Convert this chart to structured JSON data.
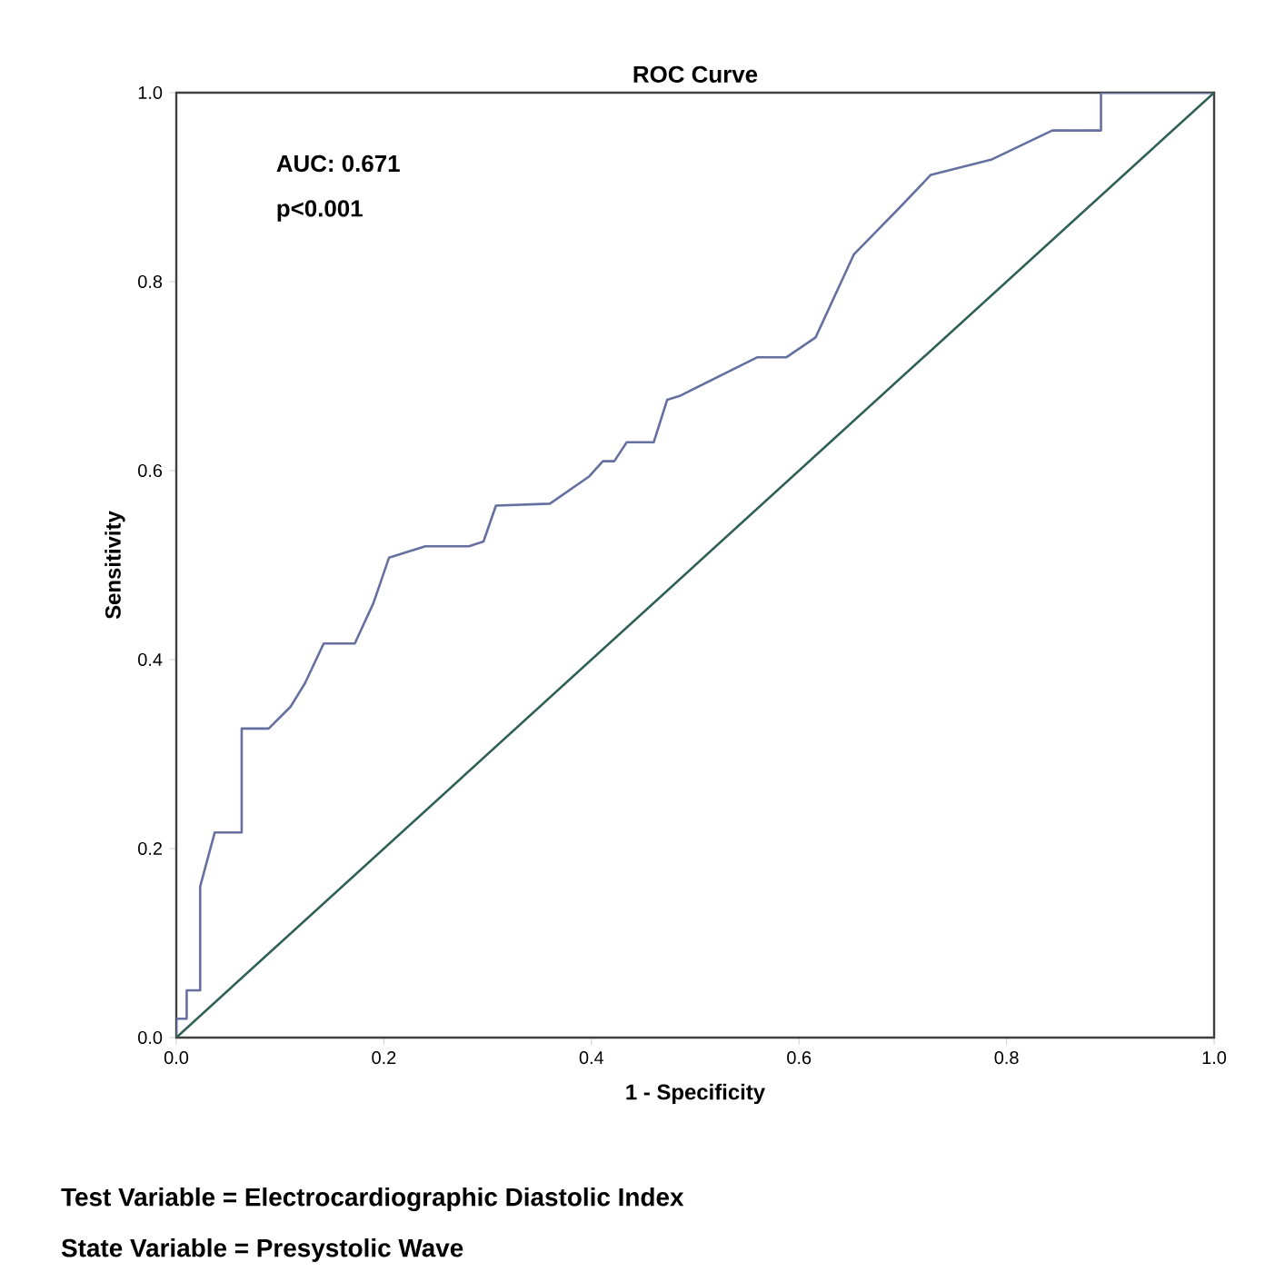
{
  "chart_data": {
    "type": "line",
    "title": "ROC Curve",
    "xlabel": "1 - Specificity",
    "ylabel": "Sensitivity",
    "xlim": [
      0,
      1
    ],
    "ylim": [
      0,
      1
    ],
    "xticks": [
      {
        "value": 0,
        "label": "0.0"
      },
      {
        "value": 0.2,
        "label": "0.2"
      },
      {
        "value": 0.4,
        "label": "0.4"
      },
      {
        "value": 0.6,
        "label": "0.6"
      },
      {
        "value": 0.8,
        "label": "0.8"
      },
      {
        "value": 1,
        "label": "1.0"
      }
    ],
    "yticks": [
      {
        "value": 0,
        "label": "0.0"
      },
      {
        "value": 0.2,
        "label": "0.2"
      },
      {
        "value": 0.4,
        "label": "0.4"
      },
      {
        "value": 0.6,
        "label": "0.6"
      },
      {
        "value": 0.8,
        "label": "0.8"
      },
      {
        "value": 1,
        "label": "1.0"
      }
    ],
    "marker": "none",
    "grid": false,
    "series": [
      {
        "color": "#6670a0",
        "x": [
          0,
          0,
          0.01,
          0.01,
          0.023,
          0.023,
          0.037,
          0.063,
          0.063,
          0.089,
          0.11,
          0.124,
          0.142,
          0.172,
          0.19,
          0.205,
          0.24,
          0.282,
          0.296,
          0.308,
          0.36,
          0.398,
          0.411,
          0.422,
          0.434,
          0.46,
          0.473,
          0.485,
          0.56,
          0.588,
          0.616,
          0.653,
          0.694,
          0.727,
          0.785,
          0.844,
          0.891,
          0.891,
          1
        ],
        "values": [
          0,
          0.02,
          0.02,
          0.05,
          0.05,
          0.16,
          0.217,
          0.217,
          0.327,
          0.327,
          0.35,
          0.375,
          0.417,
          0.417,
          0.46,
          0.508,
          0.52,
          0.52,
          0.525,
          0.563,
          0.565,
          0.594,
          0.61,
          0.61,
          0.63,
          0.63,
          0.675,
          0.679,
          0.72,
          0.72,
          0.741,
          0.829,
          0.875,
          0.913,
          0.929,
          0.96,
          0.96,
          1,
          1
        ]
      },
      {
        "color": "#2f5f55",
        "x": [
          0,
          1
        ],
        "values": [
          0,
          1
        ]
      }
    ],
    "annotations": [
      "AUC: 0.671",
      "p<0.001",
      "Test Variable = Electrocardiographic Diastolic Index",
      "State Variable = Presystolic Wave"
    ]
  }
}
